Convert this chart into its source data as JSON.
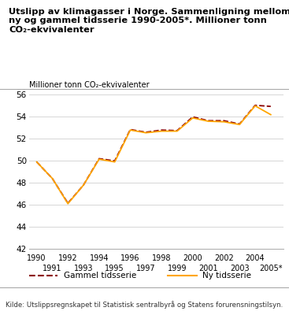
{
  "title_line1": "Utslipp av klimagasser i Norge. Sammenligning mellom",
  "title_line2": "ny og gammel tidsserie 1990-2005*. Millioner tonn",
  "title_line3": "CO₂-ekvivalenter",
  "ylabel": "Millioner tonn CO₂-ekvivalenter",
  "source": "Kilde: Utslippsregnskapet til Statistisk sentralbyrå og Statens forurensningstilsyn.",
  "ylim": [
    42,
    56
  ],
  "yticks": [
    42,
    44,
    46,
    48,
    50,
    52,
    54,
    56
  ],
  "years_old": [
    1990,
    1991,
    1992,
    1993,
    1994,
    1995,
    1996,
    1997,
    1998,
    1999,
    2000,
    2001,
    2002,
    2003,
    2004,
    2005
  ],
  "values_old": [
    49.9,
    48.4,
    46.15,
    47.8,
    50.2,
    50.0,
    52.85,
    52.6,
    52.8,
    52.75,
    54.0,
    53.65,
    53.65,
    53.35,
    55.05,
    54.95
  ],
  "years_new": [
    1990,
    1991,
    1992,
    1993,
    1994,
    1995,
    1996,
    1997,
    1998,
    1999,
    2000,
    2001,
    2002,
    2003,
    2004,
    2005
  ],
  "values_new": [
    49.9,
    48.4,
    46.1,
    47.8,
    50.15,
    49.9,
    52.8,
    52.55,
    52.7,
    52.7,
    53.9,
    53.6,
    53.55,
    53.3,
    55.0,
    54.2
  ],
  "color_old": "#8B0000",
  "color_new": "#FFA500",
  "legend_old": "Gammel tidsserie",
  "legend_new": "Ny tidsserie",
  "xticks_even": [
    1990,
    1992,
    1994,
    1996,
    1998,
    2000,
    2002,
    2004
  ],
  "xticks_odd_vals": [
    1991,
    1993,
    1995,
    1997,
    1999,
    2001,
    2003,
    2005
  ],
  "xticks_odd_labels": [
    "1991",
    "1993",
    "1995",
    "1997",
    "1999",
    "2001",
    "2003",
    "2005*"
  ]
}
